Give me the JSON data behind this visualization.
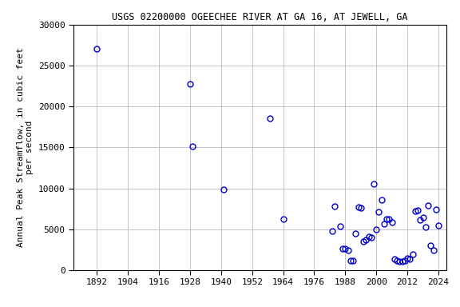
{
  "title": "USGS 02200000 OGEECHEE RIVER AT GA 16, AT JEWELL, GA",
  "ylabel": "Annual Peak Streamflow, in cubic feet\nper second",
  "years": [
    1892,
    1928,
    1929,
    1941,
    1959,
    1964,
    1983,
    1984,
    1986,
    1987,
    1988,
    1989,
    1990,
    1991,
    1992,
    1993,
    1994,
    1995,
    1996,
    1997,
    1998,
    1999,
    2000,
    2001,
    2002,
    2003,
    2004,
    2005,
    2006,
    2007,
    2008,
    2009,
    2010,
    2011,
    2012,
    2013,
    2014,
    2015,
    2016,
    2017,
    2018,
    2019,
    2020,
    2021,
    2022,
    2023,
    2024
  ],
  "flows": [
    27000,
    22700,
    15100,
    9900,
    18500,
    6200,
    4800,
    7800,
    5400,
    2600,
    2600,
    2400,
    1200,
    1200,
    4500,
    7700,
    7600,
    3500,
    3700,
    4100,
    4000,
    10500,
    5000,
    7100,
    8600,
    5700,
    6200,
    6200,
    5900,
    1400,
    1200,
    1100,
    1100,
    1200,
    1500,
    1400,
    1900,
    7200,
    7300,
    6100,
    6400,
    5300,
    7900,
    3000,
    2400,
    7400,
    5500
  ],
  "xlim": [
    1883,
    2027
  ],
  "ylim": [
    0,
    30000
  ],
  "xticks": [
    1892,
    1904,
    1916,
    1928,
    1940,
    1952,
    1964,
    1976,
    1988,
    2000,
    2012,
    2024
  ],
  "yticks": [
    0,
    5000,
    10000,
    15000,
    20000,
    25000,
    30000
  ],
  "marker_color": "#0000cc",
  "marker_size": 5,
  "grid_color": "#bbbbbb",
  "bg_color": "#ffffff",
  "title_fontsize": 8.5,
  "axis_label_fontsize": 8,
  "tick_fontsize": 8
}
